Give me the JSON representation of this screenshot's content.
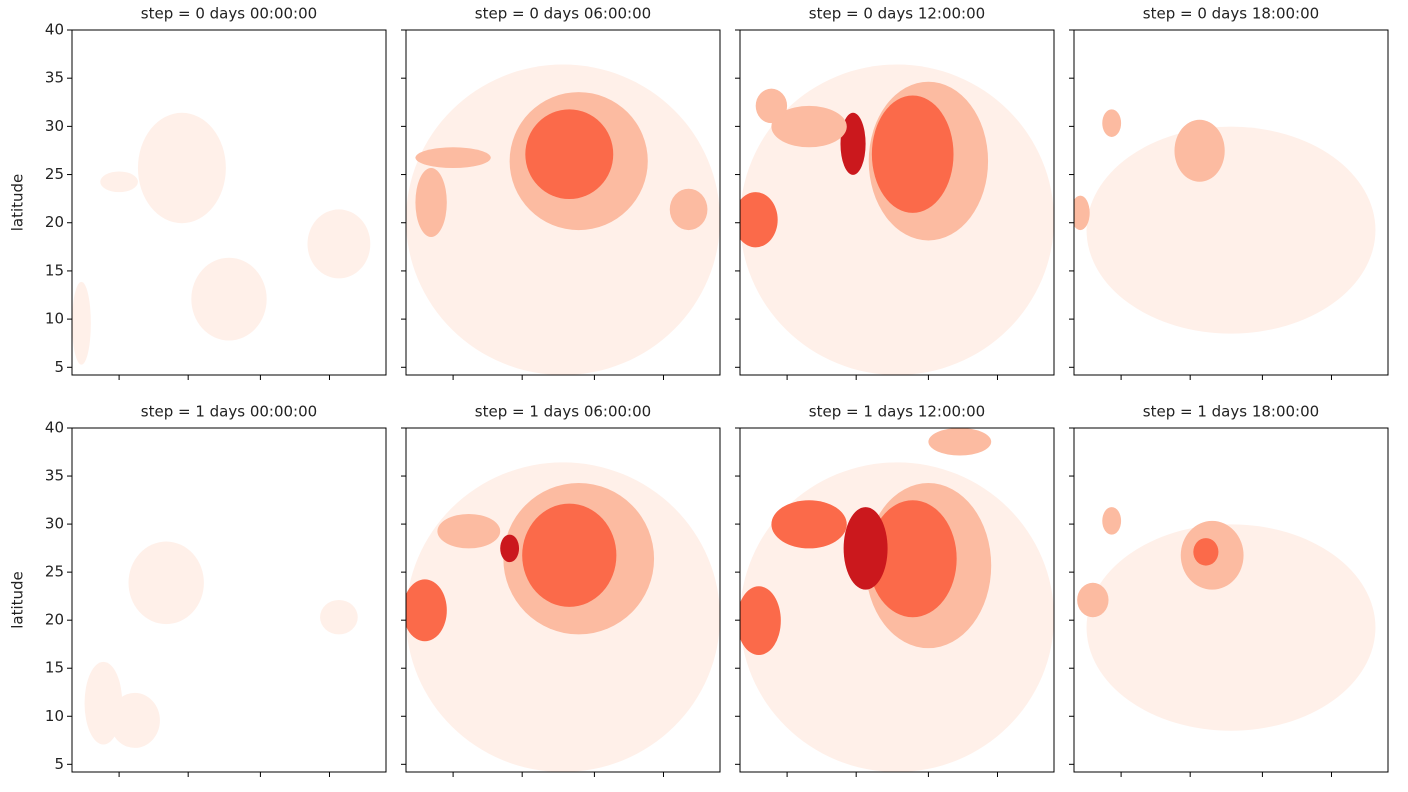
{
  "chart_data": [
    {
      "type": "contour",
      "title": "step = 0 days 00:00:00",
      "ylabel": "latitude",
      "ylim": [
        4.2,
        40
      ],
      "yticks": [
        5,
        10,
        15,
        20,
        25,
        30,
        35,
        40
      ]
    },
    {
      "type": "contour",
      "title": "step = 0 days 06:00:00",
      "ylim": [
        4.2,
        40
      ],
      "yticks": [
        5,
        10,
        15,
        20,
        25,
        30,
        35,
        40
      ]
    },
    {
      "type": "contour",
      "title": "step = 0 days 12:00:00",
      "ylim": [
        4.2,
        40
      ],
      "yticks": [
        5,
        10,
        15,
        20,
        25,
        30,
        35,
        40
      ]
    },
    {
      "type": "contour",
      "title": "step = 0 days 18:00:00",
      "ylim": [
        4.2,
        40
      ],
      "yticks": [
        5,
        10,
        15,
        20,
        25,
        30,
        35,
        40
      ]
    },
    {
      "type": "contour",
      "title": "step = 1 days 00:00:00",
      "ylabel": "latitude",
      "ylim": [
        4.2,
        40
      ],
      "yticks": [
        5,
        10,
        15,
        20,
        25,
        30,
        35,
        40
      ]
    },
    {
      "type": "contour",
      "title": "step = 1 days 06:00:00",
      "ylim": [
        4.2,
        40
      ],
      "yticks": [
        5,
        10,
        15,
        20,
        25,
        30,
        35,
        40
      ]
    },
    {
      "type": "contour",
      "title": "step = 1 days 12:00:00",
      "ylim": [
        4.2,
        40
      ],
      "yticks": [
        5,
        10,
        15,
        20,
        25,
        30,
        35,
        40
      ]
    },
    {
      "type": "contour",
      "title": "step = 1 days 18:00:00",
      "ylim": [
        4.2,
        40
      ],
      "yticks": [
        5,
        10,
        15,
        20,
        25,
        30,
        35,
        40
      ]
    }
  ]
}
